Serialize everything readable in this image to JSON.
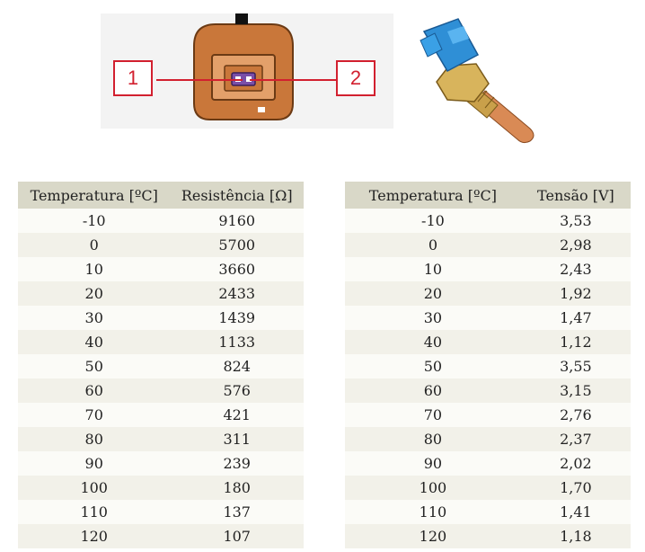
{
  "connector": {
    "pin1_label": "1",
    "pin2_label": "2"
  },
  "resistance_table": {
    "headers": [
      "Temperatura [ºC]",
      "Resistência [Ω]"
    ],
    "rows": [
      [
        "-10",
        "9160"
      ],
      [
        "0",
        "5700"
      ],
      [
        "10",
        "3660"
      ],
      [
        "20",
        "2433"
      ],
      [
        "30",
        "1439"
      ],
      [
        "40",
        "1133"
      ],
      [
        "50",
        "824"
      ],
      [
        "60",
        "576"
      ],
      [
        "70",
        "421"
      ],
      [
        "80",
        "311"
      ],
      [
        "90",
        "239"
      ],
      [
        "100",
        "180"
      ],
      [
        "110",
        "137"
      ],
      [
        "120",
        "107"
      ]
    ]
  },
  "voltage_table": {
    "headers": [
      "Temperatura [ºC]",
      "Tensão [V]"
    ],
    "rows": [
      [
        "-10",
        "3,53"
      ],
      [
        "0",
        "2,98"
      ],
      [
        "10",
        "2,43"
      ],
      [
        "20",
        "1,92"
      ],
      [
        "30",
        "1,47"
      ],
      [
        "40",
        "1,12"
      ],
      [
        "50",
        "3,55"
      ],
      [
        "60",
        "3,15"
      ],
      [
        "70",
        "2,76"
      ],
      [
        "80",
        "2,37"
      ],
      [
        "90",
        "2,02"
      ],
      [
        "100",
        "1,70"
      ],
      [
        "110",
        "1,41"
      ],
      [
        "120",
        "1,18"
      ]
    ]
  },
  "colors": {
    "connector_body": "#c9773a",
    "callout_red": "#d2202f",
    "sensor_blue": "#2f8fd6",
    "brass": "#c9a04a",
    "copper": "#d98a55"
  }
}
